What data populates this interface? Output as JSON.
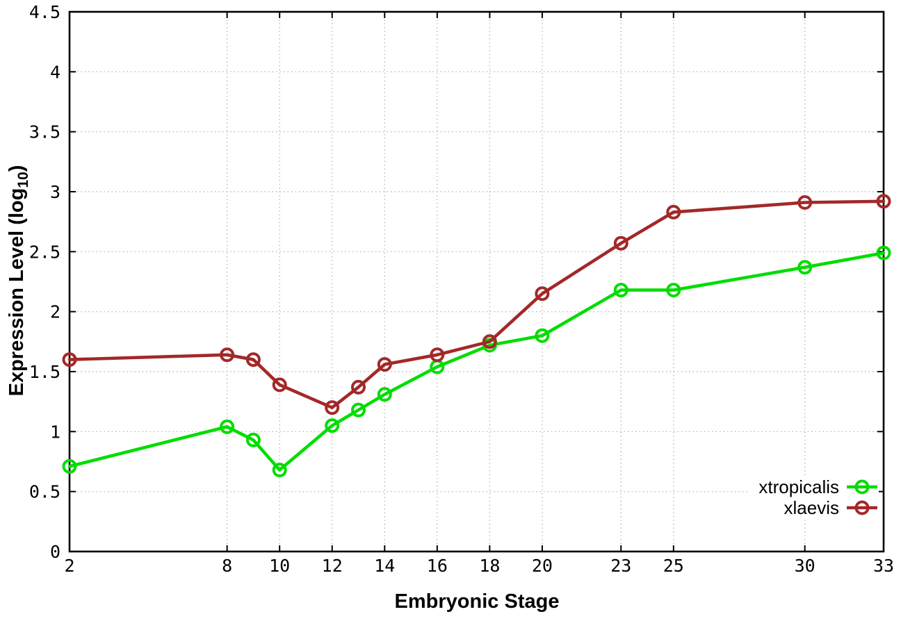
{
  "chart_data": {
    "type": "line",
    "title": "",
    "xlabel": "Embryonic Stage",
    "ylabel": "Expression Level (log10)",
    "ylabel_parts": {
      "main": "Expression Level (log",
      "sub": "10",
      "end": ")"
    },
    "x": [
      2,
      8,
      9,
      10,
      12,
      13,
      14,
      16,
      18,
      20,
      23,
      25,
      30,
      33
    ],
    "series": [
      {
        "name": "xtropicalis",
        "color": "#00dd00",
        "marker": "open-circle",
        "values": [
          0.71,
          1.04,
          0.93,
          0.68,
          1.05,
          1.18,
          1.31,
          1.54,
          1.72,
          1.8,
          2.18,
          2.18,
          2.37,
          2.49
        ]
      },
      {
        "name": "xlaevis",
        "color": "#a32828",
        "marker": "open-circle",
        "values": [
          1.6,
          1.64,
          1.6,
          1.39,
          1.2,
          1.37,
          1.56,
          1.64,
          1.75,
          2.15,
          2.57,
          2.83,
          2.91,
          2.92
        ]
      }
    ],
    "xlim": [
      2,
      33
    ],
    "ylim": [
      0,
      4.5
    ],
    "x_ticks": {
      "values": [
        2,
        8,
        10,
        12,
        14,
        16,
        18,
        20,
        23,
        25,
        30,
        33
      ],
      "labels": [
        "2",
        "8",
        "10",
        "12",
        "14",
        "16",
        "18",
        "20",
        "23",
        "25",
        "30",
        "33"
      ]
    },
    "y_ticks": {
      "values": [
        0,
        0.5,
        1,
        1.5,
        2,
        2.5,
        3,
        3.5,
        4,
        4.5
      ],
      "labels": [
        "0",
        "0.5",
        "1",
        "1.5",
        "2",
        "2.5",
        "3",
        "3.5",
        "4",
        "4.5"
      ]
    },
    "grid": true,
    "grid_style": "dotted",
    "legend_position": "bottom-right",
    "colors": {
      "background": "#ffffff",
      "border": "#000000",
      "grid": "#b9b9b9",
      "text": "#000000"
    }
  }
}
